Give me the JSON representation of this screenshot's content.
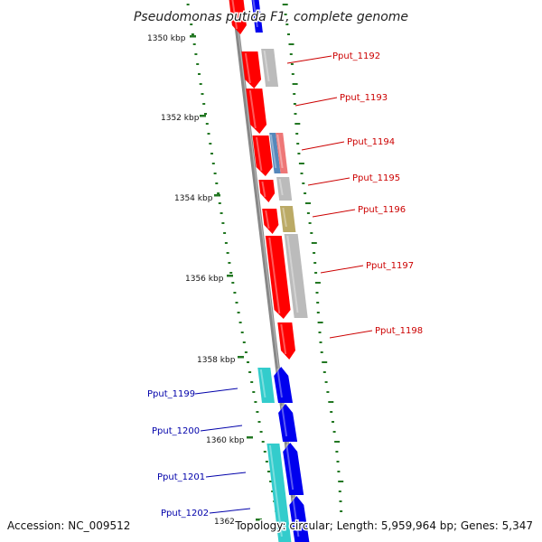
{
  "title": "Pseudomonas putida F1, complete genome",
  "accession": "Accession: NC_009512",
  "summary": "Topology: circular; Length: 5,959,964 bp; Genes: 5,347",
  "ticks": [
    "1350 kbp",
    "1352 kbp",
    "1354 kbp",
    "1356 kbp",
    "1358 kbp",
    "1360 kbp",
    "1362"
  ],
  "genes_right": [
    "Pput_1192",
    "Pput_1193",
    "Pput_1194",
    "Pput_1195",
    "Pput_1196",
    "Pput_1197",
    "Pput_1198"
  ],
  "genes_left": [
    "Pput_1199",
    "Pput_1200",
    "Pput_1201",
    "Pput_1202"
  ],
  "colors": {
    "forward_strand_gene": "#ff0000",
    "reverse_strand_gene": "#0000ee",
    "label_right": "#cc0000",
    "label_left": "#0000aa",
    "feature_grey": "#bbbbbb",
    "feature_cyan": "#33cccc",
    "feature_olive": "#bbaa66",
    "feature_steelblue": "#5588bb",
    "feature_pink": "#ee7777",
    "gc_dots": "#227722",
    "backbone": "#888888"
  }
}
